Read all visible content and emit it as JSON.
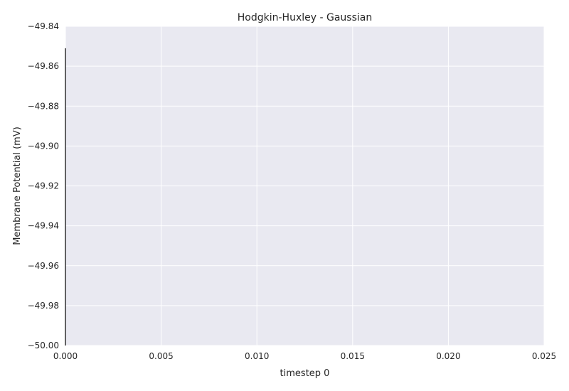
{
  "chart_data": {
    "type": "line",
    "title": "Hodgkin-Huxley - Gaussian",
    "xlabel": "timestep 0",
    "ylabel": "Membrane Potential (mV)",
    "xlim": [
      0.0,
      0.025
    ],
    "ylim": [
      -50.0,
      -49.84
    ],
    "xticks": [
      "0.000",
      "0.005",
      "0.010",
      "0.015",
      "0.020",
      "0.025"
    ],
    "yticks": [
      "−49.84",
      "−49.86",
      "−49.88",
      "−49.90",
      "−49.92",
      "−49.94",
      "−49.96",
      "−49.98",
      "−50.00"
    ],
    "series": [
      {
        "x": [
          0.0,
          0.0
        ],
        "y": [
          -49.851,
          -50.0
        ]
      }
    ],
    "grid": true,
    "colors": {
      "plot_background": "#e9e9f1",
      "grid": "#ffffff",
      "line": "#000000"
    }
  }
}
